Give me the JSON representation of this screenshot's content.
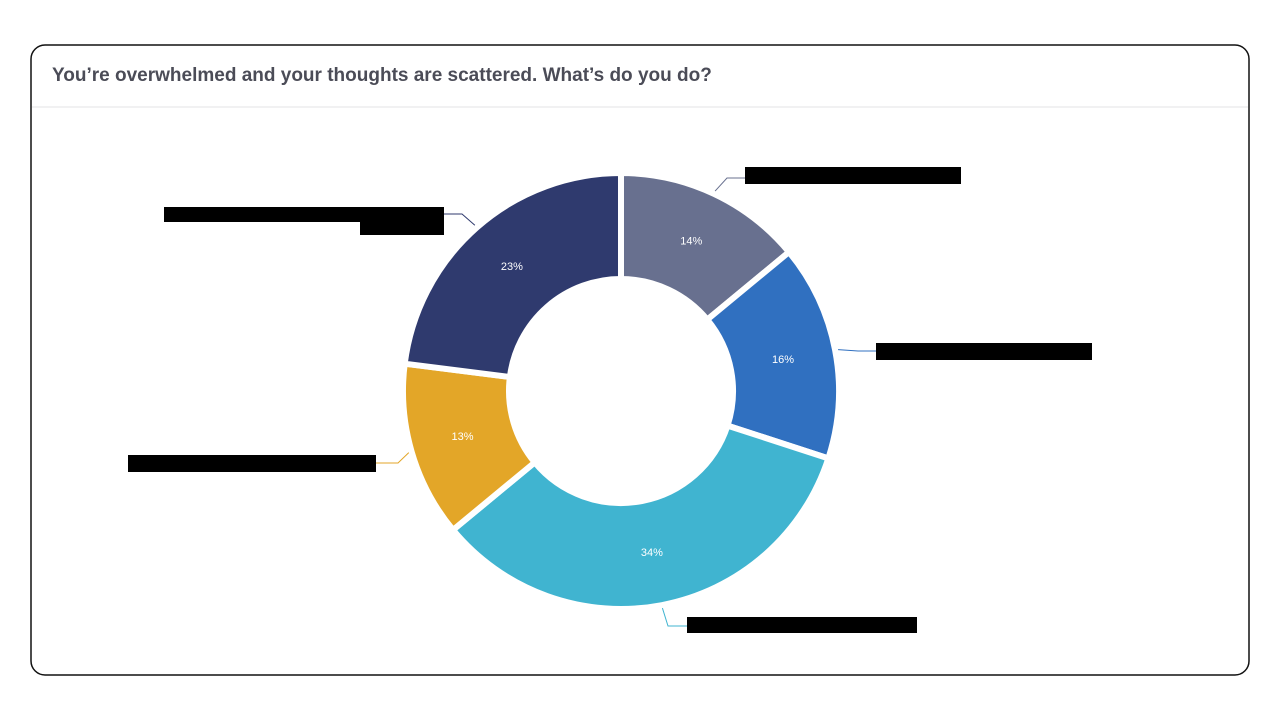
{
  "chart_data": {
    "type": "pie",
    "title": "You’re overwhelmed and your thoughts are scattered. What’s do you do?",
    "donut": true,
    "values": [
      14,
      16,
      34,
      13,
      23
    ],
    "value_labels": [
      "14%",
      "16%",
      "34%",
      "13%",
      "23%"
    ],
    "colors": [
      "#68708f",
      "#3070c0",
      "#40b4d0",
      "#e3a628",
      "#2f3a6e"
    ]
  }
}
